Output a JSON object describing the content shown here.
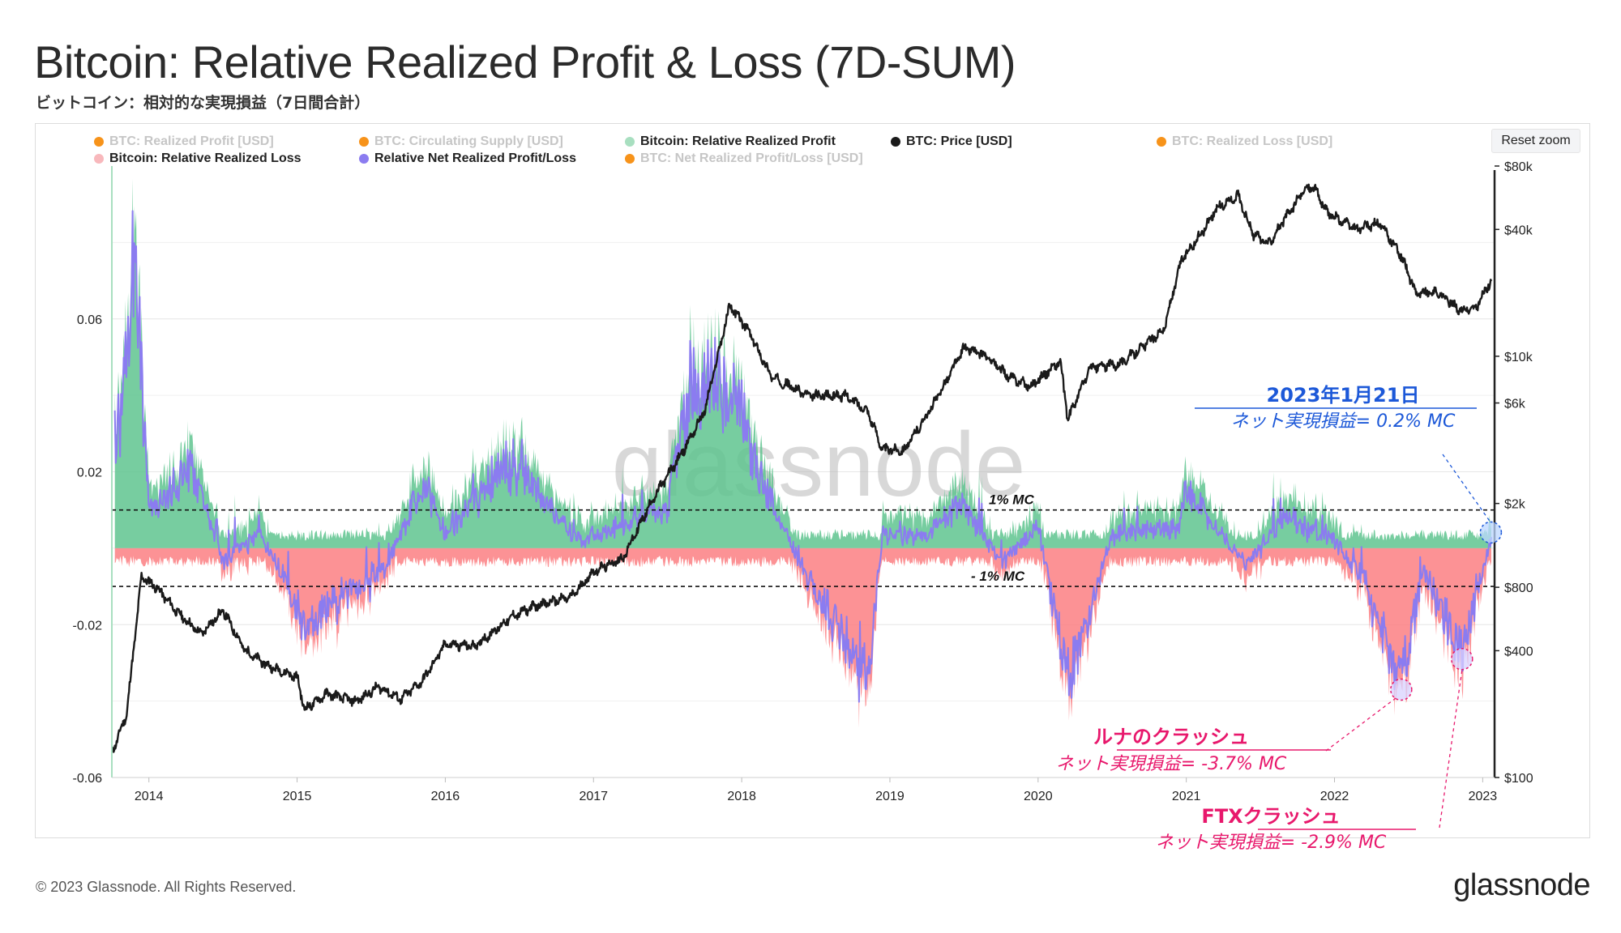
{
  "title": "Bitcoin: Relative Realized Profit & Loss (7D-SUM)",
  "subtitle": "ビットコイン：相対的な実現損益（7日間合計）",
  "reset_zoom": "Reset zoom",
  "footer": "© 2023 Glassnode. All Rights Reserved.",
  "brand": "glassnode",
  "watermark": "glassnode",
  "legend": [
    {
      "label": "BTC: Realized Profit [USD]",
      "color": "#f7931a",
      "active": false
    },
    {
      "label": "BTC: Circulating Supply [USD]",
      "color": "#f7931a",
      "active": false
    },
    {
      "label": "Bitcoin: Relative Realized Profit",
      "color": "#a8dfc0",
      "active": true
    },
    {
      "label": "BTC: Price [USD]",
      "color": "#1a1a1a",
      "active": true
    },
    {
      "label": "BTC: Realized Loss [USD]",
      "color": "#f7931a",
      "active": false
    },
    {
      "label": "Bitcoin: Relative Realized Loss",
      "color": "#f8b8bc",
      "active": true
    },
    {
      "label": "Relative Net Realized Profit/Loss",
      "color": "#8b7cf0",
      "active": true
    },
    {
      "label": "BTC: Net Realized Profit/Loss [USD]",
      "color": "#f7931a",
      "active": false
    }
  ],
  "annotations": {
    "date_title": "2023年1月21日",
    "date_value": "ネット実現損益= 0.2% MC",
    "luna_title": "ルナのクラッシュ",
    "luna_value": "ネット実現損益= -3.7% MC",
    "ftx_title": "FTXクラッシュ",
    "ftx_value": "ネット実現損益= -2.9% MC",
    "plus_line": "1% MC",
    "minus_line": "- 1% MC"
  },
  "colors": {
    "profit": "#5fc48f",
    "loss": "#fb7f83",
    "net": "#8b7cf0",
    "price": "#1a1a1a",
    "blue_annotation": "#1c58d8",
    "pink_annotation": "#e8186c"
  },
  "chart_data": {
    "type": "area",
    "x_ticks": [
      "2014",
      "2015",
      "2016",
      "2017",
      "2018",
      "2019",
      "2020",
      "2021",
      "2022",
      "2023"
    ],
    "x_range": [
      2013.75,
      2023.08
    ],
    "left_axis": {
      "ticks": [
        "0.06",
        "0.02",
        "-0.02",
        "-0.06"
      ],
      "tick_values": [
        0.06,
        0.02,
        -0.02,
        -0.06
      ],
      "range": [
        -0.06,
        0.1
      ]
    },
    "right_axis": {
      "scale": "log",
      "ticks": [
        "$80k",
        "$40k",
        "$10k",
        "$6k",
        "$2k",
        "$800",
        "$400",
        "$100"
      ],
      "tick_values": [
        80000,
        40000,
        10000,
        6000,
        2000,
        800,
        400,
        100
      ],
      "range": [
        100,
        80000
      ]
    },
    "reference_lines": [
      {
        "label": "1% MC",
        "value": 0.01
      },
      {
        "label": "- 1% MC",
        "value": -0.01
      }
    ],
    "series": [
      {
        "name": "BTC: Price [USD]",
        "axis": "right",
        "x": [
          2013.75,
          2013.85,
          2013.95,
          2014.05,
          2014.2,
          2014.35,
          2014.5,
          2014.65,
          2014.8,
          2015.0,
          2015.05,
          2015.2,
          2015.4,
          2015.55,
          2015.7,
          2015.85,
          2016.0,
          2016.2,
          2016.45,
          2016.6,
          2016.85,
          2017.0,
          2017.2,
          2017.4,
          2017.6,
          2017.75,
          2017.92,
          2018.05,
          2018.2,
          2018.45,
          2018.7,
          2018.85,
          2018.95,
          2019.1,
          2019.3,
          2019.5,
          2019.65,
          2019.8,
          2019.95,
          2020.15,
          2020.2,
          2020.35,
          2020.55,
          2020.7,
          2020.85,
          2020.97,
          2021.1,
          2021.2,
          2021.35,
          2021.45,
          2021.55,
          2021.8,
          2021.86,
          2021.95,
          2022.15,
          2022.3,
          2022.45,
          2022.55,
          2022.7,
          2022.85,
          2022.95,
          2023.05
        ],
        "values": [
          130,
          200,
          900,
          800,
          600,
          480,
          620,
          400,
          340,
          300,
          210,
          250,
          230,
          270,
          235,
          290,
          430,
          420,
          580,
          650,
          720,
          950,
          1100,
          2100,
          3500,
          5500,
          17500,
          13000,
          8000,
          6500,
          6500,
          5500,
          3600,
          3600,
          6000,
          11000,
          10000,
          8000,
          7200,
          9500,
          5000,
          8800,
          9200,
          11000,
          13500,
          29000,
          38000,
          50000,
          58000,
          38000,
          34000,
          62000,
          64000,
          48000,
          40000,
          43000,
          30000,
          20000,
          20000,
          16500,
          16800,
          22500
        ]
      },
      {
        "name": "Relative Net Realized Profit/Loss",
        "axis": "left",
        "unit": "fraction of market cap",
        "x": [
          2013.8,
          2013.9,
          2014.0,
          2014.3,
          2014.5,
          2014.75,
          2015.05,
          2015.6,
          2015.85,
          2016.0,
          2016.45,
          2016.9,
          2017.05,
          2017.5,
          2017.65,
          2017.95,
          2018.1,
          2018.4,
          2018.85,
          2018.95,
          2019.2,
          2019.5,
          2019.75,
          2020.0,
          2020.2,
          2020.5,
          2020.95,
          2021.0,
          2021.4,
          2021.65,
          2021.95,
          2022.2,
          2022.45,
          2022.6,
          2022.86,
          2023.05
        ],
        "values": [
          0.03,
          0.083,
          0.01,
          0.022,
          -0.004,
          0.005,
          -0.021,
          -0.005,
          0.018,
          0.004,
          0.024,
          0.002,
          0.004,
          0.011,
          0.045,
          0.045,
          0.022,
          -0.005,
          -0.037,
          0.004,
          0.003,
          0.012,
          -0.004,
          0.006,
          -0.037,
          0.004,
          0.006,
          0.016,
          -0.004,
          0.008,
          0.004,
          -0.008,
          -0.037,
          -0.006,
          -0.029,
          0.002
        ]
      }
    ]
  }
}
